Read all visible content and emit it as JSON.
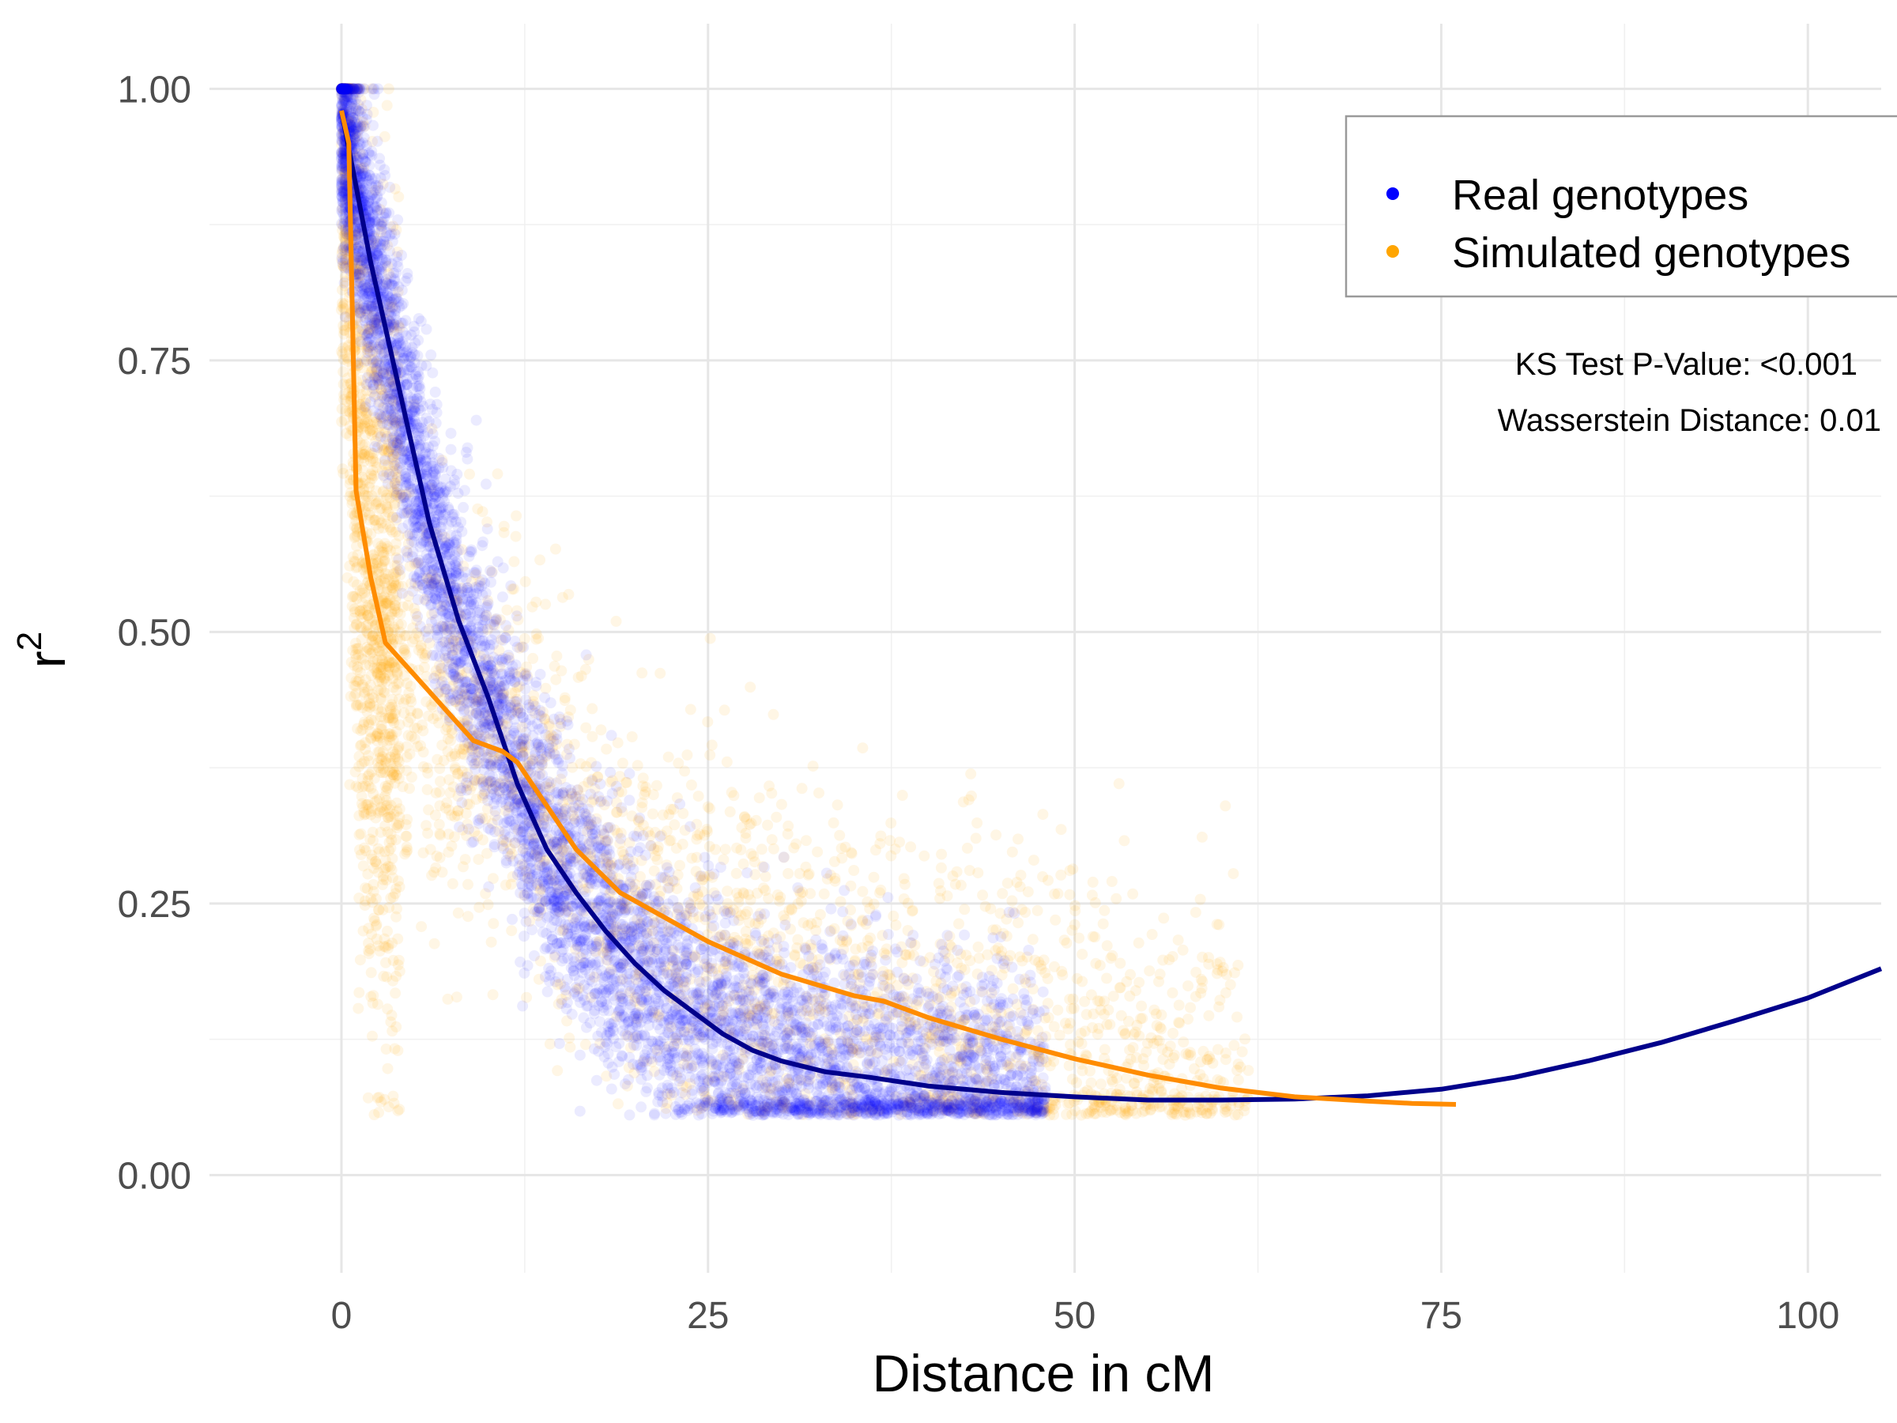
{
  "chart_data": {
    "type": "scatter",
    "xlabel": "Distance in cM",
    "ylabel": "r",
    "ylabel_superscript": "2",
    "xlim": [
      -9,
      105
    ],
    "ylim": [
      -0.09,
      1.06
    ],
    "x_ticks": [
      0,
      25,
      50,
      75,
      100
    ],
    "x_tick_labels": [
      "0",
      "25",
      "50",
      "75",
      "100"
    ],
    "y_ticks": [
      0,
      0.25,
      0.5,
      0.75,
      1
    ],
    "y_tick_labels": [
      "0.00",
      "0.25",
      "0.50",
      "0.75",
      "1.00"
    ],
    "grid": true,
    "legend_position": "top-right",
    "series": [
      {
        "name": "Real genotypes",
        "color": "#0000ff",
        "point_alpha": 0.08,
        "point_count_estimate": 6000,
        "trend_color": "#00008b",
        "trend": {
          "x": [
            0,
            2,
            4,
            6,
            8,
            10,
            12,
            14,
            16,
            18,
            20,
            22,
            24,
            26,
            28,
            30,
            33,
            36,
            40,
            45,
            50,
            55,
            60,
            65,
            70,
            75,
            80,
            85,
            90,
            95,
            100,
            105
          ],
          "y": [
            0.98,
            0.84,
            0.72,
            0.6,
            0.51,
            0.44,
            0.36,
            0.3,
            0.26,
            0.225,
            0.195,
            0.17,
            0.15,
            0.13,
            0.115,
            0.105,
            0.095,
            0.09,
            0.082,
            0.076,
            0.072,
            0.069,
            0.069,
            0.07,
            0.073,
            0.079,
            0.09,
            0.105,
            0.122,
            0.142,
            0.163,
            0.19
          ]
        }
      },
      {
        "name": "Simulated genotypes",
        "color": "#ffa500",
        "point_alpha": 0.1,
        "point_count_estimate": 3500,
        "trend_color": "#ff8c00",
        "trend": {
          "x": [
            0,
            0.5,
            1,
            2,
            3,
            5,
            7,
            9,
            11,
            12,
            14,
            16,
            19,
            21,
            25,
            30,
            35,
            37,
            40,
            45,
            50,
            55,
            60,
            65,
            70,
            73,
            76
          ],
          "y": [
            0.98,
            0.95,
            0.63,
            0.55,
            0.49,
            0.46,
            0.43,
            0.4,
            0.39,
            0.38,
            0.34,
            0.3,
            0.26,
            0.245,
            0.215,
            0.185,
            0.165,
            0.16,
            0.145,
            0.125,
            0.107,
            0.092,
            0.08,
            0.072,
            0.068,
            0.066,
            0.065
          ]
        }
      }
    ],
    "annotations": [
      {
        "text": "KS Test P-Value:  <0.001"
      },
      {
        "text": "Wasserstein Distance:  0.01"
      }
    ]
  }
}
